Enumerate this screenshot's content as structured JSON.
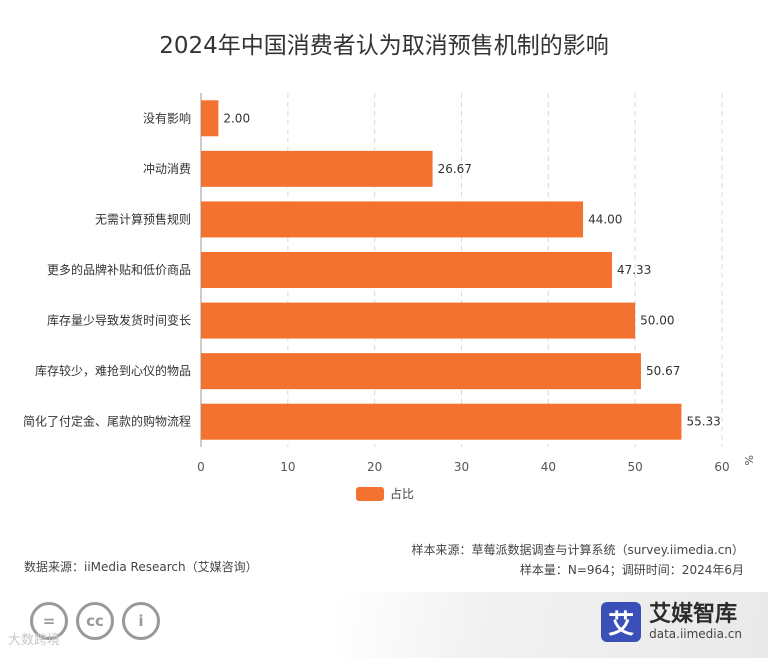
{
  "chart_data": {
    "type": "bar",
    "orientation": "horizontal",
    "title": "2024年中国消费者认为取消预售机制的影响",
    "categories": [
      "没有影响",
      "冲动消费",
      "无需计算预售规则",
      "更多的品牌补贴和低价商品",
      "库存量少导致发货时间变长",
      "库存较少，难抢到心仪的物品",
      "简化了付定金、尾款的购物流程"
    ],
    "series": [
      {
        "name": "占比",
        "values": [
          2.0,
          26.67,
          44.0,
          47.33,
          50.0,
          50.67,
          55.33
        ]
      }
    ],
    "value_labels": [
      "2.00",
      "26.67",
      "44.00",
      "47.33",
      "50.00",
      "50.67",
      "55.33"
    ],
    "xlim": [
      0,
      60
    ],
    "x_ticks": [
      "0",
      "10",
      "20",
      "30",
      "40",
      "50",
      "60"
    ],
    "unit": "%",
    "grid": true,
    "legend_position": "bottom",
    "bar_color": "#f47230"
  },
  "sources": {
    "data_source": "数据来源：iiMedia Research（艾媒咨询）",
    "sample_source": "样本来源：草莓派数据调查与计算系统（survey.iimedia.cn）",
    "sample_info": "样本量：N=964；调研时间：2024年6月"
  },
  "brand": {
    "logo_char": "艾",
    "name": "艾媒智库",
    "url": "data.iimedia.cn",
    "logo_color": "#3a4fb8"
  },
  "footer": {
    "cc_icons": [
      "equals-icon",
      "cc-icon",
      "person-icon"
    ],
    "cc_labels": [
      "=",
      "cc",
      "i"
    ],
    "watermark": "大数跨境"
  }
}
